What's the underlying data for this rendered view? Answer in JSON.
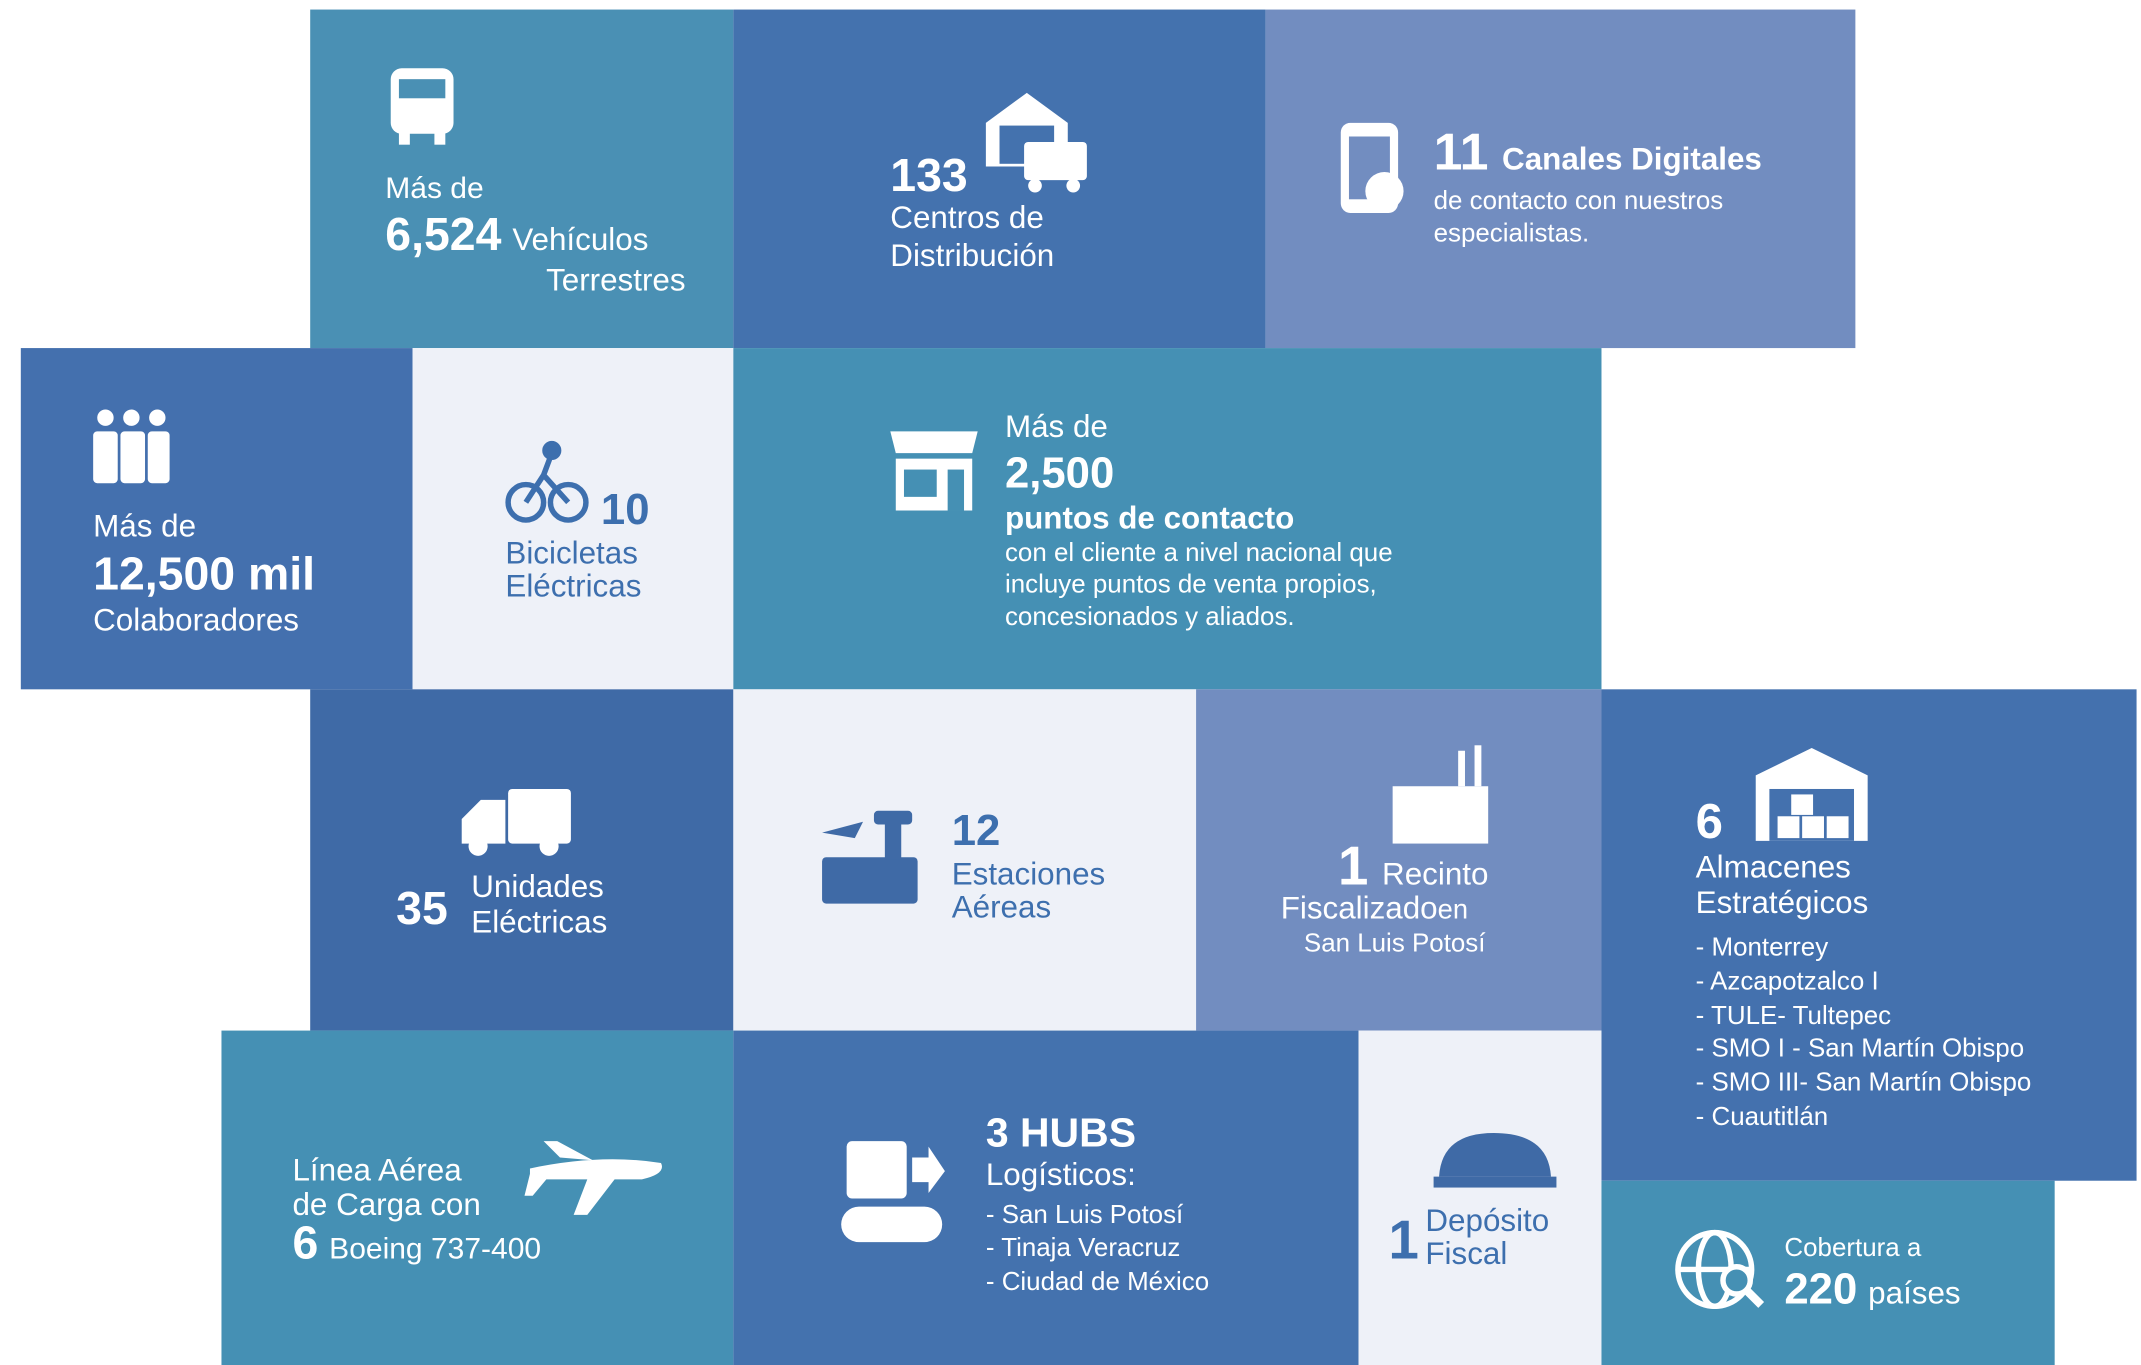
{
  "tiles": {
    "vehiculos": [
      "Más de",
      "6,524",
      "Vehículos",
      "Terrestres"
    ],
    "centros": [
      "133",
      "Centros de",
      "Distribución"
    ],
    "canales": [
      "11",
      "Canales Digitales",
      "de contacto con nuestros",
      "especialistas."
    ],
    "colaboradores": [
      "Más de",
      "12,500 mil",
      "Colaboradores"
    ],
    "bicicletas": [
      "10",
      "Bicicletas",
      "Eléctricas"
    ],
    "puntos": [
      "Más de",
      "2,500",
      "puntos de contacto",
      "con el cliente a nivel nacional que",
      "incluye puntos de venta propios,",
      "concesionados y aliados."
    ],
    "unidades": [
      "35",
      "Unidades",
      "Eléctricas"
    ],
    "estaciones": [
      "12",
      "Estaciones",
      "Aéreas"
    ],
    "recinto": [
      "1",
      "Recinto",
      "Fiscalizado",
      " en",
      "San Luis Potosí"
    ],
    "almacenes": [
      "6",
      "Almacenes",
      "Estratégicos",
      "- Monterrey",
      "- Azcapotzalco I",
      "- TULE- Tultepec",
      "- SMO I - San Martín Obispo",
      "- SMO III- San Martín Obispo",
      "- Cuautitlán"
    ],
    "linea": [
      "Línea Aérea",
      "de Carga con",
      "6",
      "Boeing 737-400"
    ],
    "hubs": [
      "3 HUBS",
      "Logísticos:",
      "- San Luis Potosí",
      "- Tinaja Veracruz",
      "- Ciudad de México"
    ],
    "deposito": [
      "1",
      "Depósito",
      "Fiscal"
    ],
    "cobertura": [
      "Cobertura a",
      "220",
      "países"
    ]
  }
}
